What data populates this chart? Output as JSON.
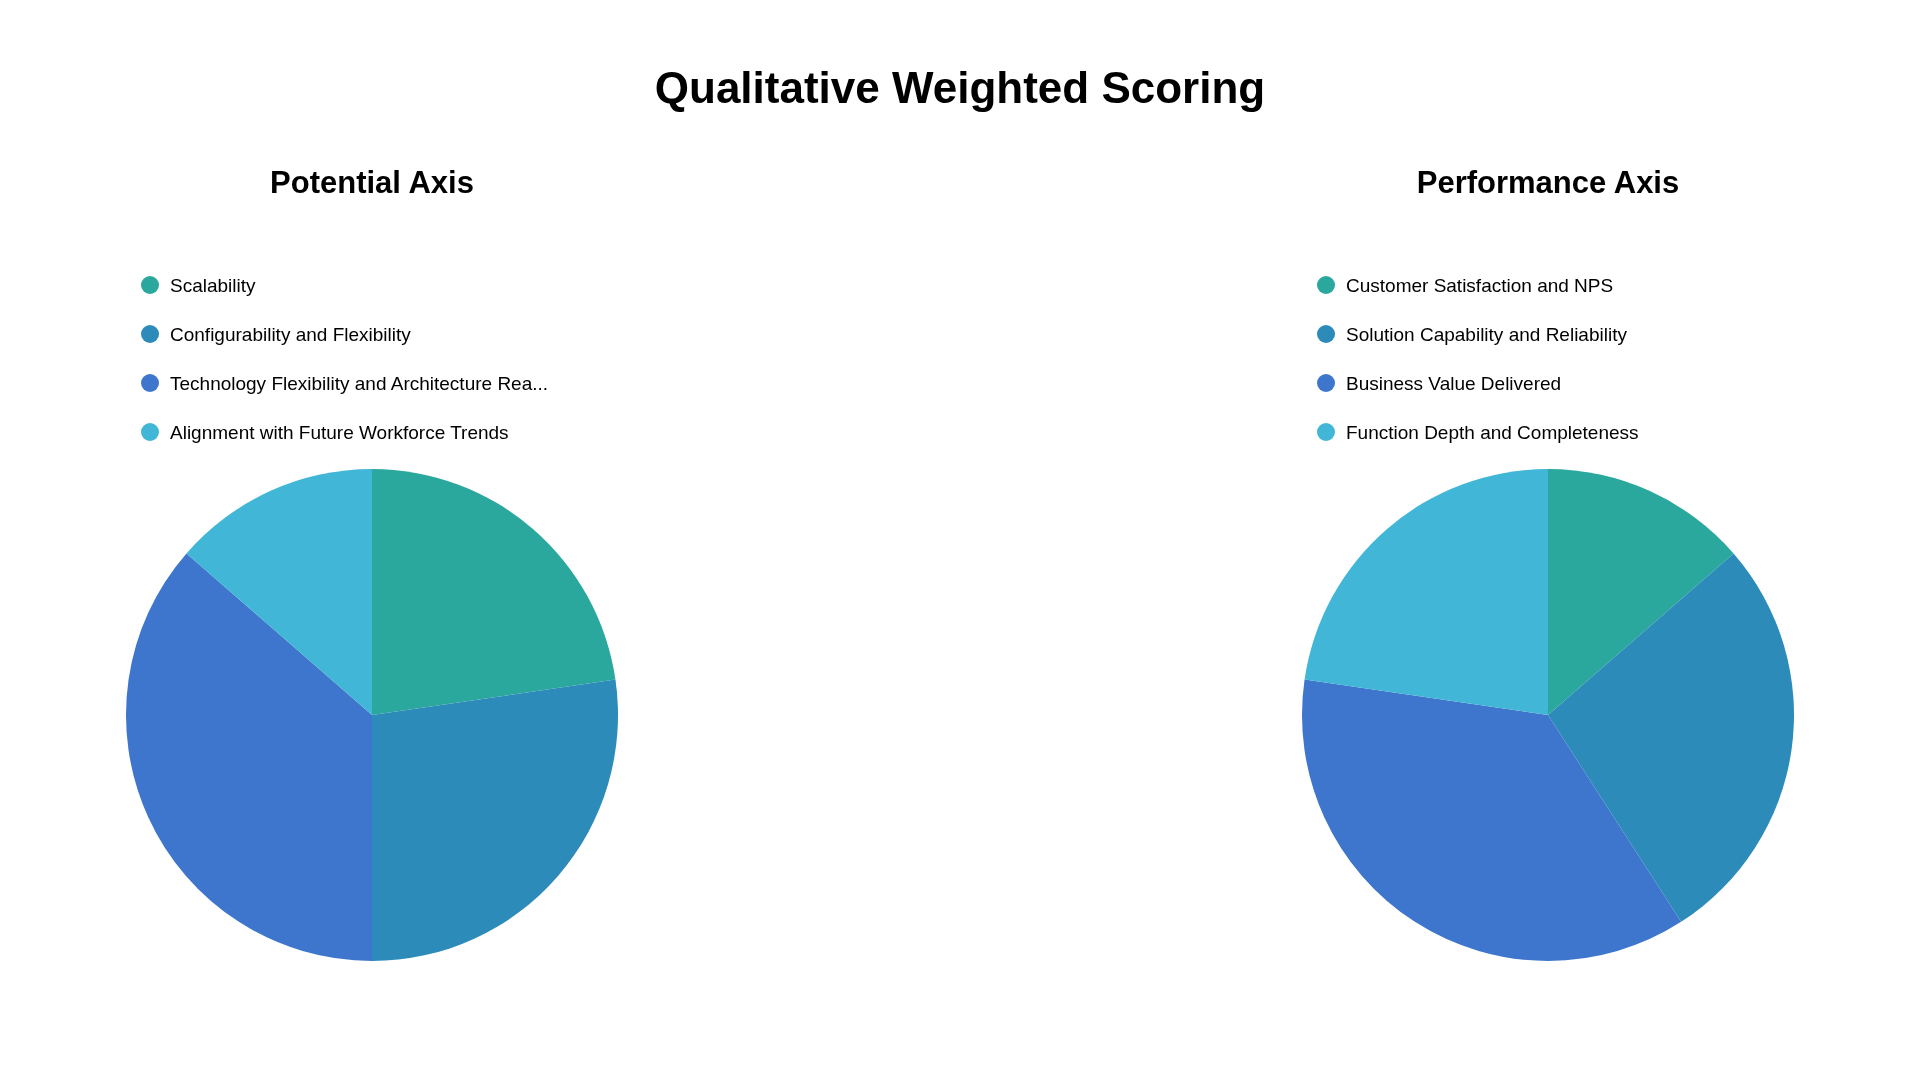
{
  "chart_data": [
    {
      "type": "pie",
      "title": "Potential Axis",
      "legend": "top",
      "categories": [
        "Scalability",
        "Configurability and Flexibility",
        "Technology Flexibility and Architecture Rea...",
        "Alignment with Future Workforce Trends"
      ],
      "values": [
        22.7,
        27.3,
        36.4,
        13.6
      ],
      "colors": [
        "#2ba89e",
        "#2d8bba",
        "#3d76cc",
        "#41b6d6"
      ]
    },
    {
      "type": "pie",
      "title": "Performance Axis",
      "subtitle": "Qualitative Weighted Scoring",
      "legend": "top",
      "categories": [
        "Customer Satisfaction and NPS",
        "Solution Capability and Reliability",
        "Business Value Delivered",
        "Function Depth and Completeness"
      ],
      "values": [
        13.6,
        27.3,
        36.4,
        22.7
      ],
      "colors": [
        "#2ba89e",
        "#2d8bba",
        "#3d76cc",
        "#41b6d6"
      ]
    }
  ]
}
